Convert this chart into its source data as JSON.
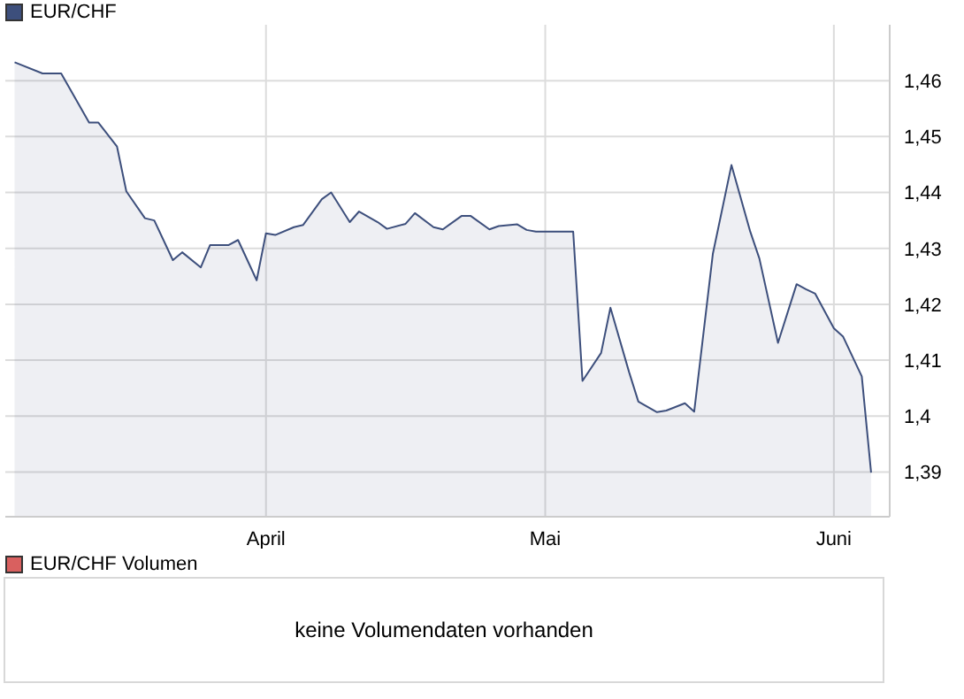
{
  "chart_data": [
    {
      "type": "area",
      "legend": "top left",
      "grid": true,
      "x": [
        "--03-05",
        "--03-08",
        "--03-10",
        "--03-13",
        "--03-14",
        "--03-16",
        "--03-17",
        "--03-19",
        "--03-20",
        "--03-22",
        "--03-23",
        "--03-25",
        "--03-26",
        "--03-28",
        "--03-29",
        "--03-31",
        "--04-01",
        "--04-02",
        "--04-04",
        "--04-05",
        "--04-07",
        "--04-08",
        "--04-10",
        "--04-11",
        "--04-13",
        "--04-14",
        "--04-16",
        "--04-17",
        "--04-19",
        "--04-20",
        "--04-22",
        "--04-23",
        "--04-25",
        "--04-26",
        "--04-28",
        "--04-29",
        "--04-30",
        "--05-04",
        "--05-05",
        "--05-07",
        "--05-08",
        "--05-10",
        "--05-11",
        "--05-13",
        "--05-14",
        "--05-16",
        "--05-17",
        "--05-19",
        "--05-21",
        "--05-23",
        "--05-24",
        "--05-26",
        "--05-28",
        "--05-29",
        "--05-30",
        "--06-01",
        "--06-02",
        "--06-04",
        "--06-05"
      ],
      "series": [
        {
          "name": "EUR/CHF",
          "color": "#3d4f7c",
          "values": [
            1.4633,
            1.4613,
            1.4613,
            1.4525,
            1.4525,
            1.4482,
            1.4402,
            1.4354,
            1.435,
            1.4279,
            1.4293,
            1.4266,
            1.4306,
            1.4306,
            1.4315,
            1.4243,
            1.4327,
            1.4324,
            1.4338,
            1.4342,
            1.4388,
            1.44,
            1.4347,
            1.4366,
            1.4347,
            1.4335,
            1.4344,
            1.4363,
            1.4338,
            1.4334,
            1.4358,
            1.4358,
            1.4334,
            1.434,
            1.4343,
            1.4333,
            1.433,
            1.433,
            1.4063,
            1.4113,
            1.4194,
            1.4079,
            1.4026,
            1.4007,
            1.401,
            1.4023,
            1.4008,
            1.429,
            1.4449,
            1.4331,
            1.4282,
            1.4131,
            1.4236,
            1.4227,
            1.4219,
            1.4157,
            1.4142,
            1.4071,
            1.3899
          ]
        }
      ],
      "xlim": [
        "--03-04",
        "--06-07"
      ],
      "xticks": [
        {
          "value": "--04-01",
          "label": "April"
        },
        {
          "value": "--05-01",
          "label": "Mai"
        },
        {
          "value": "--06-01",
          "label": "Juni"
        }
      ],
      "ylim": [
        1.382,
        1.47
      ],
      "yticks": [
        {
          "value": 1.39,
          "label": "1,39"
        },
        {
          "value": 1.4,
          "label": "1,4"
        },
        {
          "value": 1.41,
          "label": "1,41"
        },
        {
          "value": 1.42,
          "label": "1,42"
        },
        {
          "value": 1.43,
          "label": "1,43"
        },
        {
          "value": 1.44,
          "label": "1,44"
        },
        {
          "value": 1.45,
          "label": "1,45"
        },
        {
          "value": 1.46,
          "label": "1,46"
        }
      ]
    },
    {
      "type": "other",
      "title": "EUR/CHF Volumen",
      "annotations": [
        "keine Volumendaten vorhanden"
      ]
    }
  ]
}
